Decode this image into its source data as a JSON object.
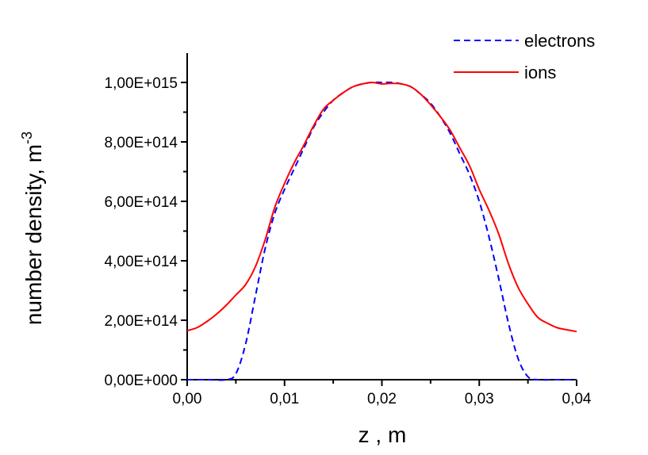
{
  "chart_data": {
    "type": "line",
    "title": "",
    "xlabel": "z , m",
    "ylabel": "number density, m",
    "ylabel_superscript": "-3",
    "xlim": [
      0.0,
      0.04
    ],
    "ylim": [
      0,
      1100000000000000.0
    ],
    "x_ticks": [
      "0,00",
      "0,01",
      "0,02",
      "0,03",
      "0,04"
    ],
    "y_ticks": [
      "0,00E+000",
      "2,00E+014",
      "4,00E+014",
      "6,00E+014",
      "8,00E+014",
      "1,00E+015"
    ],
    "grid": false,
    "legend_position": "top-right",
    "series": [
      {
        "name": "electrons",
        "color": "#0000ff",
        "style": "dashed",
        "x": [
          0.0,
          0.002,
          0.004,
          0.005,
          0.006,
          0.007,
          0.008,
          0.009,
          0.01,
          0.011,
          0.012,
          0.013,
          0.014,
          0.015,
          0.016,
          0.017,
          0.018,
          0.019,
          0.02,
          0.021,
          0.022,
          0.023,
          0.024,
          0.025,
          0.026,
          0.027,
          0.028,
          0.029,
          0.03,
          0.031,
          0.032,
          0.033,
          0.034,
          0.035,
          0.036,
          0.038,
          0.04
        ],
        "y": [
          0,
          0,
          0,
          20000000000000.0,
          120000000000000.0,
          280000000000000.0,
          440000000000000.0,
          560000000000000.0,
          640000000000000.0,
          710000000000000.0,
          780000000000000.0,
          850000000000000.0,
          900000000000000.0,
          940000000000000.0,
          965000000000000.0,
          985000000000000.0,
          995000000000000.0,
          1000000000000000.0,
          1000000000000000.0,
          1000000000000000.0,
          995000000000000.0,
          985000000000000.0,
          960000000000000.0,
          930000000000000.0,
          885000000000000.0,
          830000000000000.0,
          760000000000000.0,
          690000000000000.0,
          600000000000000.0,
          480000000000000.0,
          340000000000000.0,
          190000000000000.0,
          70000000000000.0,
          10000000000000.0,
          0,
          0,
          0
        ]
      },
      {
        "name": "ions",
        "color": "#ff0000",
        "style": "solid",
        "x": [
          0.0,
          0.001,
          0.002,
          0.003,
          0.004,
          0.005,
          0.006,
          0.007,
          0.008,
          0.009,
          0.01,
          0.011,
          0.012,
          0.013,
          0.014,
          0.015,
          0.016,
          0.017,
          0.018,
          0.019,
          0.02,
          0.021,
          0.022,
          0.023,
          0.024,
          0.025,
          0.026,
          0.027,
          0.028,
          0.029,
          0.03,
          0.031,
          0.032,
          0.033,
          0.034,
          0.035,
          0.036,
          0.037,
          0.038,
          0.039,
          0.04
        ],
        "y": [
          165000000000000.0,
          175000000000000.0,
          195000000000000.0,
          220000000000000.0,
          250000000000000.0,
          285000000000000.0,
          320000000000000.0,
          380000000000000.0,
          470000000000000.0,
          580000000000000.0,
          660000000000000.0,
          730000000000000.0,
          790000000000000.0,
          855000000000000.0,
          910000000000000.0,
          940000000000000.0,
          965000000000000.0,
          985000000000000.0,
          995000000000000.0,
          1000000000000000.0,
          995000000000000.0,
          997000000000000.0,
          995000000000000.0,
          985000000000000.0,
          960000000000000.0,
          925000000000000.0,
          885000000000000.0,
          840000000000000.0,
          780000000000000.0,
          720000000000000.0,
          640000000000000.0,
          570000000000000.0,
          490000000000000.0,
          390000000000000.0,
          310000000000000.0,
          255000000000000.0,
          210000000000000.0,
          190000000000000.0,
          175000000000000.0,
          168000000000000.0,
          162000000000000.0
        ]
      }
    ]
  }
}
